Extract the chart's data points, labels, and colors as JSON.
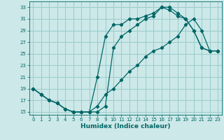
{
  "background_color": "#cce8e8",
  "grid_color": "#99cccc",
  "line_color": "#006666",
  "xlabel": "Humidex (Indice chaleur)",
  "xlim": [
    -0.5,
    23.5
  ],
  "ylim": [
    14.5,
    34
  ],
  "yticks": [
    15,
    17,
    19,
    21,
    23,
    25,
    27,
    29,
    31,
    33
  ],
  "xticks": [
    0,
    1,
    2,
    3,
    4,
    5,
    6,
    7,
    8,
    9,
    10,
    11,
    12,
    13,
    14,
    15,
    16,
    17,
    18,
    19,
    20,
    21,
    22,
    23
  ],
  "curve1_x": [
    0,
    1,
    2,
    3,
    4,
    5,
    6,
    7,
    8,
    9,
    10,
    11,
    12,
    13,
    14,
    15,
    16,
    17,
    18,
    19,
    20,
    21,
    22,
    23
  ],
  "curve1_y": [
    19,
    18,
    17,
    16.5,
    15.5,
    15,
    15,
    15,
    15,
    16,
    26,
    28,
    29,
    30,
    31,
    31.5,
    33,
    33,
    32,
    31,
    29,
    26,
    25.5,
    25.5
  ],
  "curve2_x": [
    0,
    1,
    2,
    3,
    4,
    5,
    6,
    7,
    8,
    9,
    10,
    11,
    12,
    13,
    14,
    15,
    16,
    17,
    18,
    19,
    20,
    21,
    22,
    23
  ],
  "curve2_y": [
    19,
    18,
    17,
    16.5,
    15.5,
    15,
    15,
    15,
    21,
    28,
    30,
    30,
    31,
    31,
    31.5,
    32,
    33,
    32.5,
    31.5,
    31,
    29,
    26,
    25.5,
    25.5
  ],
  "curve3_x": [
    0,
    1,
    2,
    3,
    4,
    5,
    6,
    7,
    8,
    9,
    10,
    11,
    12,
    13,
    14,
    15,
    16,
    17,
    18,
    19,
    20,
    21,
    22,
    23
  ],
  "curve3_y": [
    19,
    18,
    17,
    16.5,
    15.5,
    15,
    15,
    15,
    16,
    18,
    19,
    20.5,
    22,
    23,
    24.5,
    25.5,
    26,
    27,
    28,
    30,
    31,
    29,
    25.5,
    25.5
  ]
}
